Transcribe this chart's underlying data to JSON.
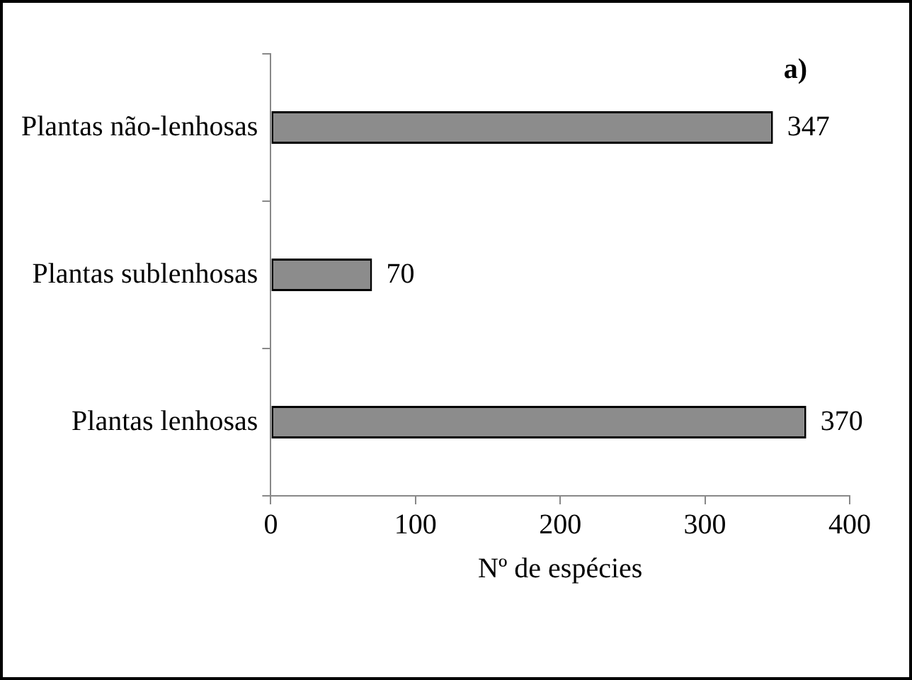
{
  "chart_data": {
    "type": "bar",
    "orientation": "horizontal",
    "categories": [
      "Plantas não-lenhosas",
      "Plantas sublenhosas",
      "Plantas lenhosas"
    ],
    "values": [
      347,
      70,
      370
    ],
    "color": "#8c8c8c",
    "xlim": [
      0,
      400
    ],
    "xticks": [
      0,
      100,
      200,
      300,
      400
    ],
    "xlabel": "Nº de espécies",
    "data_labels": true,
    "annotations": [
      "a)"
    ]
  }
}
